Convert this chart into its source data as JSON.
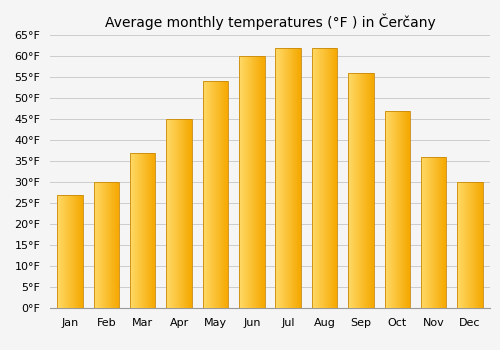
{
  "title": "Average monthly temperatures (°F ) in Čerčany",
  "months": [
    "Jan",
    "Feb",
    "Mar",
    "Apr",
    "May",
    "Jun",
    "Jul",
    "Aug",
    "Sep",
    "Oct",
    "Nov",
    "Dec"
  ],
  "values": [
    27,
    30,
    37,
    45,
    54,
    60,
    62,
    62,
    56,
    47,
    36,
    30
  ],
  "bar_color_left": "#FFD966",
  "bar_color_right": "#F5A800",
  "bar_edge_color": "#C8880A",
  "ylim": [
    0,
    65
  ],
  "yticks": [
    0,
    5,
    10,
    15,
    20,
    25,
    30,
    35,
    40,
    45,
    50,
    55,
    60,
    65
  ],
  "ytick_labels": [
    "0°F",
    "5°F",
    "10°F",
    "15°F",
    "20°F",
    "25°F",
    "30°F",
    "35°F",
    "40°F",
    "45°F",
    "50°F",
    "55°F",
    "60°F",
    "65°F"
  ],
  "background_color": "#f5f5f5",
  "plot_bg_color": "#f5f5f5",
  "grid_color": "#cccccc",
  "title_fontsize": 10,
  "tick_fontsize": 8,
  "bar_width": 0.7,
  "n_gradient_strips": 50
}
